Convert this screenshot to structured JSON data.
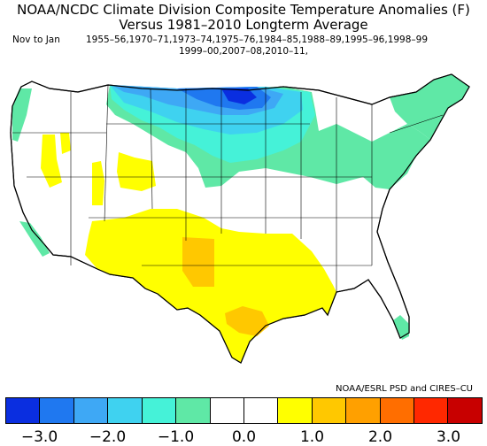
{
  "title": {
    "line1": "NOAA/NCDC Climate Division Composite Temperature Anomalies (F)",
    "line2": "Versus 1981–2010 Longterm Average",
    "period": "Nov to Jan",
    "years_line1": "1955–56,1970–71,1973–74,1975–76,1984–85,1988–89,1995–96,1998–99",
    "years_line2": "1999–00,2007–08,2010–11,"
  },
  "credit": "NOAA/ESRL PSD and CIRES–CU",
  "colors": {
    "c1": "#0a2ee0",
    "c2": "#1f78f0",
    "c3": "#3ea8f5",
    "c4": "#3fd2f0",
    "c5": "#45f2d8",
    "c6": "#5fe8a6",
    "white": "#ffffff",
    "w1": "#ffff00",
    "w2": "#ffc800",
    "w3": "#ffa000",
    "w4": "#ff6e00",
    "w5": "#ff2800",
    "w6": "#c80000"
  },
  "legend": {
    "swatches": [
      "#0a2ee0",
      "#1f78f0",
      "#3ea8f5",
      "#3fd2f0",
      "#45f2d8",
      "#5fe8a6",
      "#ffffff",
      "#ffffff",
      "#ffff00",
      "#ffc800",
      "#ffa000",
      "#ff6e00",
      "#ff2800",
      "#c80000"
    ],
    "tick_labels": [
      "−3.0",
      "−2.0",
      "−1.0",
      "0.0",
      "1.0",
      "2.0",
      "3.0"
    ]
  }
}
